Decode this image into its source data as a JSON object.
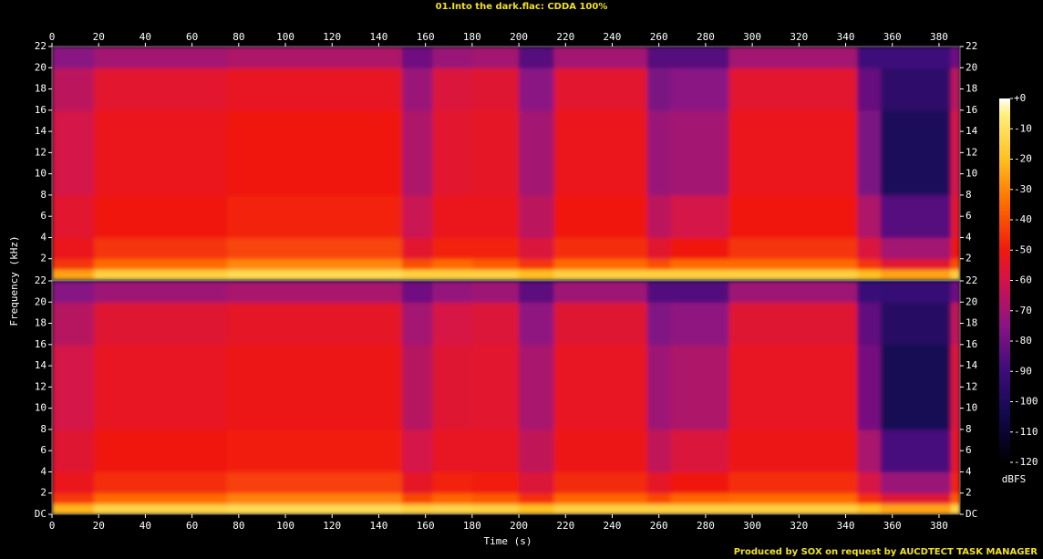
{
  "chart_data": {
    "type": "spectrogram",
    "title": "01.Into the dark.flac: CDDA 100%",
    "xlabel": "Time (s)",
    "ylabel": "Frequency (kHz)",
    "colorbar_label": "dBFS",
    "footer": "Produced by SOX on request by AUCDTECT TASK MANAGER",
    "xlim": [
      0,
      389
    ],
    "xticks": [
      0,
      20,
      40,
      60,
      80,
      100,
      120,
      140,
      160,
      180,
      200,
      220,
      240,
      260,
      280,
      300,
      320,
      340,
      360,
      380
    ],
    "ylim": [
      0,
      22
    ],
    "time_edges": [
      0,
      18,
      75,
      150,
      163,
      180,
      200,
      215,
      255,
      265,
      290,
      345,
      355,
      385,
      389
    ],
    "freq_edges": [
      0,
      1,
      2,
      4,
      8,
      16,
      20,
      22
    ],
    "clim": [
      -120,
      0
    ],
    "cticks": [
      {
        "value": 0,
        "label": "+0"
      },
      -10,
      -20,
      -30,
      -40,
      -50,
      -60,
      -70,
      -80,
      -90,
      -100,
      -110,
      -120
    ],
    "colormap": [
      {
        "value": -120,
        "color": "#000000"
      },
      {
        "value": -105,
        "color": "#10084a"
      },
      {
        "value": -90,
        "color": "#3c0c7a"
      },
      {
        "value": -75,
        "color": "#8a1384"
      },
      {
        "value": -60,
        "color": "#d4124a"
      },
      {
        "value": -50,
        "color": "#f0190f"
      },
      {
        "value": -35,
        "color": "#ff6a00"
      },
      {
        "value": -20,
        "color": "#ffc020"
      },
      {
        "value": -5,
        "color": "#fff080"
      },
      {
        "value": 0,
        "color": "#ffffff"
      }
    ],
    "channels": [
      {
        "yticks": [
          2,
          4,
          6,
          8,
          10,
          12,
          14,
          16,
          18,
          20,
          22
        ],
        "values": [
          [
            -25,
            -45,
            -52,
            -55,
            -60,
            -65,
            -75
          ],
          [
            -15,
            -35,
            -45,
            -50,
            -52,
            -55,
            -70
          ],
          [
            -12,
            -30,
            -42,
            -48,
            -50,
            -53,
            -68
          ],
          [
            -15,
            -40,
            -55,
            -62,
            -68,
            -72,
            -80
          ],
          [
            -15,
            -35,
            -48,
            -52,
            -55,
            -58,
            -72
          ],
          [
            -15,
            -38,
            -48,
            -52,
            -54,
            -56,
            -70
          ],
          [
            -20,
            -45,
            -58,
            -65,
            -70,
            -75,
            -85
          ],
          [
            -15,
            -35,
            -46,
            -50,
            -52,
            -55,
            -70
          ],
          [
            -15,
            -40,
            -55,
            -65,
            -72,
            -78,
            -85
          ],
          [
            -15,
            -35,
            -50,
            -60,
            -70,
            -75,
            -85
          ],
          [
            -15,
            -35,
            -45,
            -50,
            -52,
            -55,
            -70
          ],
          [
            -20,
            -45,
            -58,
            -68,
            -78,
            -82,
            -90
          ],
          [
            -25,
            -55,
            -70,
            -85,
            -100,
            -95,
            -90
          ],
          [
            -15,
            -40,
            -50,
            -55,
            -60,
            -65,
            -80
          ]
        ]
      },
      {
        "yticks": [
          {
            "value": 0,
            "label": "DC"
          },
          2,
          4,
          6,
          8,
          10,
          12,
          14,
          16,
          18,
          20,
          22
        ],
        "values": [
          [
            -22,
            -44,
            -52,
            -56,
            -60,
            -66,
            -76
          ],
          [
            -14,
            -35,
            -46,
            -50,
            -53,
            -56,
            -71
          ],
          [
            -12,
            -31,
            -43,
            -49,
            -51,
            -54,
            -69
          ],
          [
            -15,
            -41,
            -54,
            -60,
            -66,
            -70,
            -80
          ],
          [
            -14,
            -36,
            -48,
            -53,
            -56,
            -59,
            -73
          ],
          [
            -15,
            -38,
            -49,
            -53,
            -55,
            -57,
            -71
          ],
          [
            -20,
            -46,
            -57,
            -64,
            -69,
            -74,
            -84
          ],
          [
            -15,
            -36,
            -47,
            -51,
            -53,
            -56,
            -71
          ],
          [
            -15,
            -41,
            -54,
            -64,
            -71,
            -77,
            -86
          ],
          [
            -15,
            -36,
            -50,
            -58,
            -68,
            -74,
            -86
          ],
          [
            -15,
            -35,
            -46,
            -51,
            -53,
            -56,
            -71
          ],
          [
            -20,
            -46,
            -59,
            -69,
            -79,
            -83,
            -91
          ],
          [
            -25,
            -56,
            -72,
            -88,
            -102,
            -97,
            -92
          ],
          [
            -14,
            -38,
            -48,
            -54,
            -58,
            -64,
            -80
          ]
        ]
      }
    ]
  }
}
